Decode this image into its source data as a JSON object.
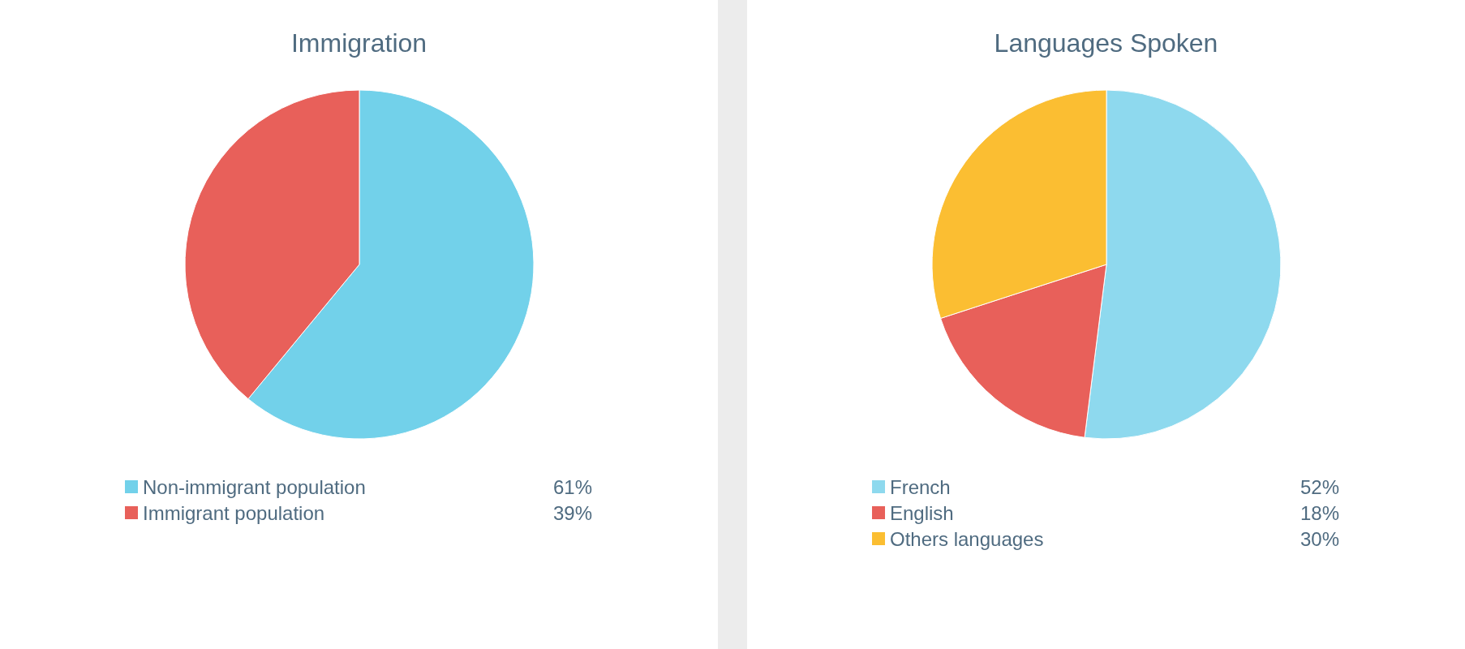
{
  "chart_data": [
    {
      "type": "pie",
      "title": "Immigration",
      "categories": [
        "Non-immigrant population",
        "Immigrant population"
      ],
      "values": [
        61,
        39
      ],
      "value_labels": [
        "61%",
        "39%"
      ],
      "colors": [
        "#72d1ea",
        "#e8605a"
      ],
      "legend": "bottom"
    },
    {
      "type": "pie",
      "title": "Languages Spoken",
      "categories": [
        "French",
        "English",
        "Others languages"
      ],
      "values": [
        52,
        18,
        30
      ],
      "value_labels": [
        "52%",
        "18%",
        "30%"
      ],
      "colors": [
        "#8ed9ee",
        "#e8605a",
        "#fbbe32"
      ],
      "legend": "bottom"
    }
  ]
}
